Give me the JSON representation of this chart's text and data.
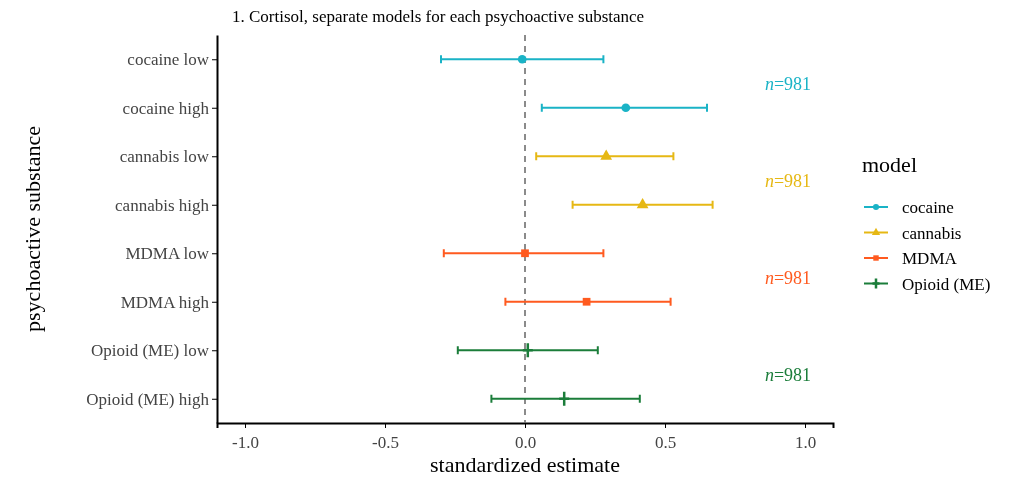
{
  "chart_data": {
    "type": "scatter",
    "orientation": "horizontal",
    "title": "1. Cortisol, separate models for each psychoactive substance",
    "xlabel": "standardized estimate",
    "ylabel": "psychoactive substance",
    "legend_title": "model",
    "legend": "right",
    "grid": false,
    "categories": [
      "cocaine low",
      "cocaine high",
      "cannabis low",
      "cannabis high",
      "MDMA low",
      "MDMA high",
      "Opioid (ME) low",
      "Opioid (ME) high"
    ],
    "xlim": [
      -1.1,
      1.1
    ],
    "xticks": [
      {
        "value": -1,
        "label": "-1.0"
      },
      {
        "value": -0.5,
        "label": "-0.5"
      },
      {
        "value": 0,
        "label": "0.0"
      },
      {
        "value": 0.5,
        "label": "0.5"
      },
      {
        "value": 1,
        "label": "1.0"
      }
    ],
    "ref_lines": [
      {
        "axis": "x",
        "value": 0,
        "color": "#666666",
        "line_style": "dashed"
      }
    ],
    "series": [
      {
        "name": "cocaine",
        "color": "#1ab3c6",
        "marker": "circle",
        "values": [
          -0.01,
          0.36,
          null,
          null,
          null,
          null,
          null,
          null
        ],
        "errors": [
          [
            -0.3,
            0.28
          ],
          [
            0.06,
            0.65
          ],
          null,
          null,
          null,
          null,
          null,
          null
        ]
      },
      {
        "name": "cannabis",
        "color": "#e6b814",
        "marker": "triangle",
        "values": [
          null,
          null,
          0.29,
          0.42,
          null,
          null,
          null,
          null
        ],
        "errors": [
          null,
          null,
          [
            0.04,
            0.53
          ],
          [
            0.17,
            0.67
          ],
          null,
          null,
          null,
          null
        ]
      },
      {
        "name": "MDMA",
        "color": "#ff5a1f",
        "marker": "square",
        "values": [
          null,
          null,
          null,
          null,
          0.0,
          0.22,
          null,
          null
        ],
        "errors": [
          null,
          null,
          null,
          null,
          [
            -0.29,
            0.28
          ],
          [
            -0.07,
            0.52
          ],
          null,
          null
        ]
      },
      {
        "name": "Opioid (ME)",
        "color": "#1b7d3a",
        "marker": "cross",
        "values": [
          null,
          null,
          null,
          null,
          null,
          null,
          0.01,
          0.14
        ],
        "errors": [
          null,
          null,
          null,
          null,
          null,
          null,
          [
            -0.24,
            0.26
          ],
          [
            -0.12,
            0.41
          ]
        ]
      }
    ],
    "annotations": [
      "n=981",
      "n=981",
      "n=981",
      "n=981"
    ]
  }
}
